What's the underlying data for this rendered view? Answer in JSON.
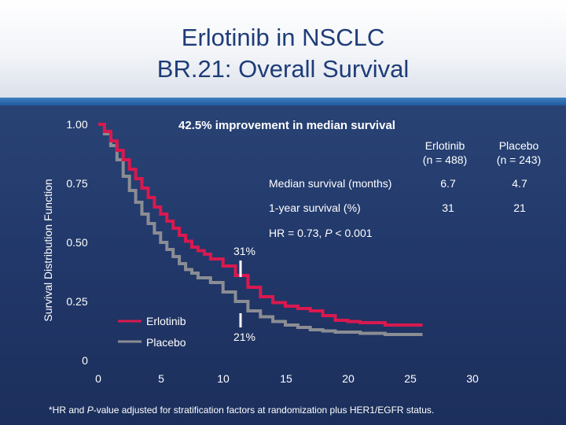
{
  "title": {
    "line1": "Erlotinib in NSCLC",
    "line2": "BR.21: Overall Survival"
  },
  "headline": "42.5% improvement in median survival",
  "stats_table": {
    "columns": [
      "Erlotinib\n(n = 488)",
      "Placebo\n(n = 243)"
    ],
    "col1_line1": "Erlotinib",
    "col1_line2": "(n = 488)",
    "col2_line1": "Placebo",
    "col2_line2": "(n = 243)",
    "rows": [
      {
        "label": "Median survival (months)",
        "erlotinib": "6.7",
        "placebo": "4.7"
      },
      {
        "label": "1-year survival (%)",
        "erlotinib": "31",
        "placebo": "21"
      }
    ],
    "hr_prefix": "HR = 0.73, ",
    "hr_p": "P",
    "hr_suffix": " < 0.001"
  },
  "annotations": {
    "erlotinib_1yr": "31%",
    "placebo_1yr": "21%"
  },
  "footnote": {
    "prefix": "*HR and ",
    "p": "P",
    "suffix": "-value adjusted for stratification factors at randomization plus HER1/EGFR status."
  },
  "colors": {
    "erlotinib": "#d8194f",
    "placebo": "#8a8d93",
    "header_text": "#1e3c78",
    "background": "#22386a"
  },
  "chart_data": {
    "type": "line",
    "ylabel": "Survival Distribution Function",
    "xlabel": "",
    "xlim": [
      0,
      30
    ],
    "ylim": [
      0,
      1
    ],
    "x_ticks": [
      "0",
      "5",
      "10",
      "15",
      "20",
      "25",
      "30"
    ],
    "y_ticks": [
      "0",
      "0.25",
      "0.50",
      "0.75",
      "1.00"
    ],
    "legend_position": "bottom-left",
    "series": [
      {
        "name": "Erlotinib",
        "color": "#d8194f",
        "x": [
          0,
          0.5,
          1,
          1.5,
          2,
          2.5,
          3,
          3.5,
          4,
          4.5,
          5,
          5.5,
          6,
          6.5,
          7,
          7.5,
          8,
          8.5,
          9,
          10,
          11,
          12,
          13,
          14,
          15,
          16,
          17,
          18,
          19,
          20,
          21,
          22,
          23,
          24,
          25,
          26
        ],
        "y": [
          1.0,
          0.97,
          0.93,
          0.89,
          0.85,
          0.81,
          0.77,
          0.73,
          0.69,
          0.65,
          0.62,
          0.59,
          0.56,
          0.53,
          0.505,
          0.48,
          0.465,
          0.45,
          0.43,
          0.4,
          0.36,
          0.31,
          0.27,
          0.245,
          0.23,
          0.22,
          0.21,
          0.19,
          0.17,
          0.165,
          0.16,
          0.16,
          0.15,
          0.15,
          0.15,
          0.15
        ]
      },
      {
        "name": "Placebo",
        "color": "#8a8d93",
        "x": [
          0,
          0.5,
          1,
          1.5,
          2,
          2.5,
          3,
          3.5,
          4,
          4.5,
          5,
          5.5,
          6,
          6.5,
          7,
          7.5,
          8,
          9,
          10,
          11,
          12,
          13,
          14,
          15,
          16,
          17,
          18,
          19,
          20,
          21,
          22,
          23,
          24,
          25,
          26
        ],
        "y": [
          1.0,
          0.96,
          0.91,
          0.85,
          0.78,
          0.72,
          0.67,
          0.62,
          0.58,
          0.54,
          0.5,
          0.47,
          0.44,
          0.41,
          0.385,
          0.37,
          0.35,
          0.33,
          0.29,
          0.25,
          0.21,
          0.185,
          0.165,
          0.15,
          0.14,
          0.13,
          0.125,
          0.12,
          0.12,
          0.115,
          0.115,
          0.11,
          0.11,
          0.11,
          0.11
        ]
      }
    ]
  }
}
